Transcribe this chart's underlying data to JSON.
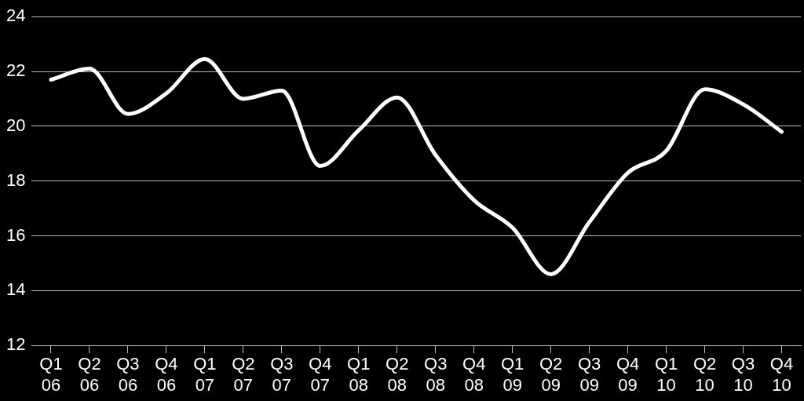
{
  "chart_data": {
    "type": "line",
    "categories": [
      "Q1 06",
      "Q2 06",
      "Q3 06",
      "Q4 06",
      "Q1 07",
      "Q2 07",
      "Q3 07",
      "Q4 07",
      "Q1 08",
      "Q2 08",
      "Q3 08",
      "Q4 08",
      "Q1 09",
      "Q2 09",
      "Q3 09",
      "Q4 09",
      "Q1 10",
      "Q2 10",
      "Q3 10",
      "Q4 10"
    ],
    "series": [
      {
        "color": "#ffffff",
        "values": [
          21.7,
          22.1,
          20.45,
          21.2,
          22.45,
          21.0,
          21.3,
          18.55,
          19.85,
          21.05,
          18.95,
          17.3,
          16.3,
          14.6,
          16.5,
          18.3,
          19.1,
          21.35,
          20.8,
          19.8
        ]
      }
    ],
    "ylim": [
      12,
      24
    ],
    "yticks": [
      12,
      14,
      16,
      18,
      20,
      22,
      24
    ],
    "grid": "y",
    "legend": false,
    "marker": "none",
    "line_style": "solid"
  }
}
